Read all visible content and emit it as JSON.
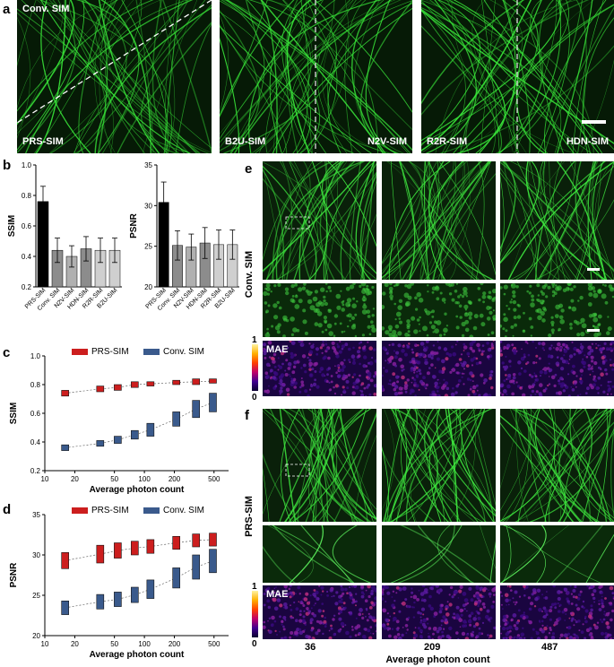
{
  "panel_letters": {
    "a": "a",
    "b": "b",
    "c": "c",
    "d": "d",
    "e": "e",
    "f": "f"
  },
  "panel_a": {
    "img1": {
      "top_left": "Conv. SIM",
      "bottom_left": "PRS-SIM"
    },
    "img2": {
      "left": "B2U-SIM",
      "right": "N2V-SIM"
    },
    "img3": {
      "left": "R2R-SIM",
      "right": "HDN-SIM"
    }
  },
  "panel_e": {
    "row_label": "Conv. SIM",
    "mae_label": "MAE",
    "cbar_max": "1",
    "cbar_min": "0"
  },
  "panel_f": {
    "row_label": "PRS-SIM",
    "mae_label": "MAE",
    "cbar_max": "1",
    "cbar_min": "0"
  },
  "photon_axis": {
    "ticks": [
      "36",
      "209",
      "487"
    ],
    "label": "Average photon count"
  },
  "colors": {
    "green": "#2bd92b",
    "prs": "#cc1e1e",
    "conv": "#3a5a8c"
  },
  "chart_data": [
    {
      "type": "bar",
      "id": "ssim_bar",
      "ylabel": "SSIM",
      "ylim": [
        0.2,
        1.0
      ],
      "yticks": [
        "0.2",
        "0.4",
        "0.6",
        "0.8",
        "1.0"
      ],
      "categories": [
        "PRS-SIM",
        "Conv. SIM",
        "N2V-SIM",
        "HDN-SIM",
        "R2R-SIM",
        "B2U-SIM"
      ],
      "values": [
        0.76,
        0.44,
        0.4,
        0.45,
        0.44,
        0.44
      ],
      "errors": [
        0.1,
        0.08,
        0.07,
        0.08,
        0.08,
        0.08
      ],
      "colors": [
        "#000000",
        "#8c8c8c",
        "#b0b0b0",
        "#8c8c8c",
        "#cfcfcf",
        "#cfcfcf"
      ]
    },
    {
      "type": "bar",
      "id": "psnr_bar",
      "ylabel": "PSNR",
      "ylim": [
        20,
        35
      ],
      "yticks": [
        "20",
        "25",
        "30",
        "35"
      ],
      "categories": [
        "PRS-SIM",
        "Conv. SIM",
        "N2V-SIM",
        "HDN-SIM",
        "R2R-SIM",
        "B2U-SIM"
      ],
      "values": [
        30.4,
        25.1,
        24.9,
        25.4,
        25.2,
        25.2
      ],
      "errors": [
        2.5,
        1.8,
        1.6,
        1.9,
        1.8,
        1.8
      ],
      "colors": [
        "#000000",
        "#8c8c8c",
        "#b0b0b0",
        "#8c8c8c",
        "#cfcfcf",
        "#cfcfcf"
      ]
    },
    {
      "type": "box",
      "id": "ssim_box",
      "ylabel": "SSIM",
      "xlabel": "Average photon count",
      "xscale": "log",
      "xlim": [
        10,
        700
      ],
      "ylim": [
        0.2,
        1.0
      ],
      "xticks": [
        "10",
        "20",
        "50",
        "100",
        "200",
        "500"
      ],
      "yticks": [
        "0.2",
        "0.4",
        "0.6",
        "0.8",
        "1.0"
      ],
      "series": [
        {
          "name": "PRS-SIM",
          "color": "#cc1e1e",
          "x": [
            16,
            36,
            54,
            80,
            115,
            209,
            330,
            487
          ],
          "low": [
            0.72,
            0.75,
            0.76,
            0.78,
            0.79,
            0.8,
            0.8,
            0.81
          ],
          "high": [
            0.76,
            0.79,
            0.8,
            0.82,
            0.82,
            0.83,
            0.84,
            0.84
          ]
        },
        {
          "name": "Conv. SIM",
          "color": "#3a5a8c",
          "x": [
            16,
            36,
            54,
            80,
            115,
            209,
            330,
            487
          ],
          "low": [
            0.34,
            0.37,
            0.39,
            0.42,
            0.44,
            0.51,
            0.57,
            0.61
          ],
          "high": [
            0.38,
            0.41,
            0.44,
            0.48,
            0.53,
            0.61,
            0.69,
            0.74
          ]
        }
      ]
    },
    {
      "type": "box",
      "id": "psnr_box",
      "ylabel": "PSNR",
      "xlabel": "Average photon count",
      "xscale": "log",
      "xlim": [
        10,
        700
      ],
      "ylim": [
        20,
        35
      ],
      "xticks": [
        "10",
        "20",
        "50",
        "100",
        "200",
        "500"
      ],
      "yticks": [
        "20",
        "25",
        "30",
        "35"
      ],
      "series": [
        {
          "name": "PRS-SIM",
          "color": "#cc1e1e",
          "x": [
            16,
            36,
            54,
            80,
            115,
            209,
            330,
            487
          ],
          "low": [
            28.3,
            29.0,
            29.6,
            30.0,
            30.2,
            30.7,
            31.0,
            31.1
          ],
          "high": [
            30.3,
            31.2,
            31.5,
            31.7,
            31.9,
            32.3,
            32.6,
            32.7
          ]
        },
        {
          "name": "Conv. SIM",
          "color": "#3a5a8c",
          "x": [
            16,
            36,
            54,
            80,
            115,
            209,
            330,
            487
          ],
          "low": [
            22.6,
            23.3,
            23.6,
            24.1,
            24.6,
            25.9,
            27.0,
            27.8
          ],
          "high": [
            24.3,
            25.1,
            25.4,
            26.0,
            26.9,
            28.4,
            30.0,
            30.7
          ]
        }
      ]
    }
  ]
}
